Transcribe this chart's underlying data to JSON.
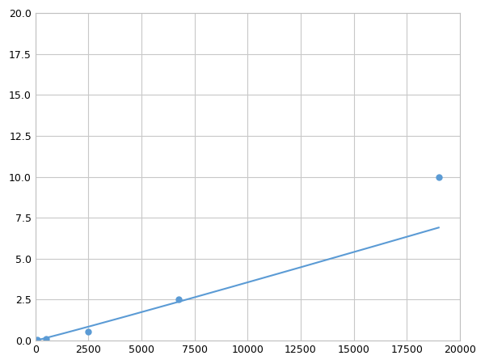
{
  "x": [
    100,
    500,
    2500,
    6750,
    19000
  ],
  "y": [
    0.05,
    0.1,
    0.55,
    2.5,
    10.0
  ],
  "line_color": "#5b9bd5",
  "marker_color": "#5b9bd5",
  "marker_size": 5,
  "xlim": [
    0,
    20000
  ],
  "ylim": [
    0,
    20.0
  ],
  "xticks": [
    0,
    2500,
    5000,
    7500,
    10000,
    12500,
    15000,
    17500,
    20000
  ],
  "yticks": [
    0.0,
    2.5,
    5.0,
    7.5,
    10.0,
    12.5,
    15.0,
    17.5,
    20.0
  ],
  "grid_color": "#c8c8c8",
  "background_color": "#ffffff",
  "figsize": [
    6.0,
    4.5
  ],
  "dpi": 100
}
